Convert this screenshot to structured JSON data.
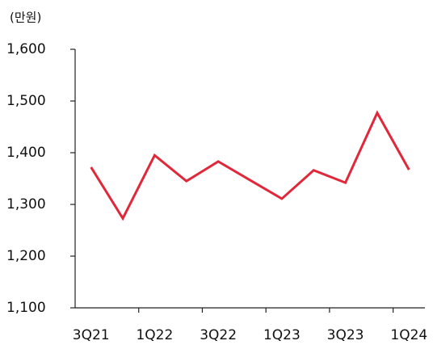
{
  "chart_data": {
    "type": "line",
    "y_label": "(만원)",
    "categories": [
      "3Q21",
      null,
      "1Q22",
      null,
      "3Q22",
      null,
      "1Q23",
      null,
      "3Q23",
      null,
      "1Q24"
    ],
    "series": [
      {
        "name": "",
        "color": "#e0283a",
        "values": [
          1372,
          1273,
          1395,
          1345,
          1383,
          1347,
          1311,
          1366,
          1342,
          1477,
          1367
        ]
      }
    ],
    "ylim": [
      1100,
      1600
    ],
    "yticks": [
      {
        "value": 1100,
        "label": "1,100"
      },
      {
        "value": 1200,
        "label": "1,200"
      },
      {
        "value": 1300,
        "label": "1,300"
      },
      {
        "value": 1400,
        "label": "1,400"
      },
      {
        "value": 1500,
        "label": "1,500"
      },
      {
        "value": 1600,
        "label": "1,600"
      }
    ],
    "grid": false
  }
}
